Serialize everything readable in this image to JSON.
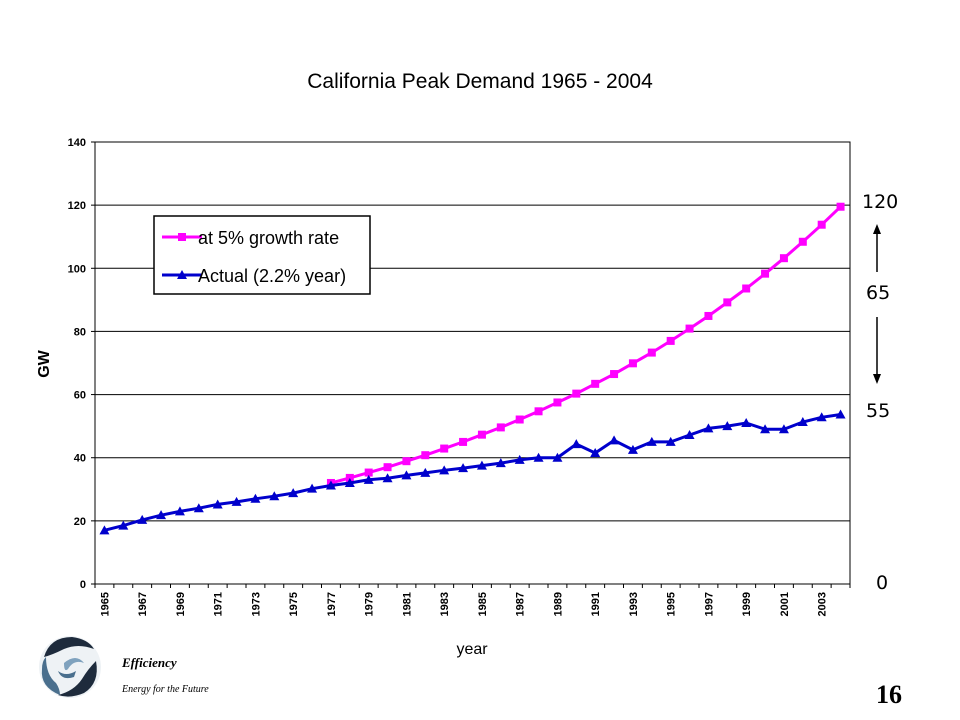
{
  "chart_data": {
    "type": "line",
    "title": "California Peak Demand 1965 - 2004",
    "xlabel": "year",
    "ylabel": "GW",
    "ylim": [
      0,
      140
    ],
    "yticks": [
      0,
      20,
      40,
      60,
      80,
      100,
      120,
      140
    ],
    "x": [
      1965,
      1966,
      1967,
      1968,
      1969,
      1970,
      1971,
      1972,
      1973,
      1974,
      1975,
      1976,
      1977,
      1978,
      1979,
      1980,
      1981,
      1982,
      1983,
      1984,
      1985,
      1986,
      1987,
      1988,
      1989,
      1990,
      1991,
      1992,
      1993,
      1994,
      1995,
      1996,
      1997,
      1998,
      1999,
      2000,
      2001,
      2002,
      2003,
      2004
    ],
    "xtick_labels": [
      "1965",
      "1967",
      "1969",
      "1971",
      "1973",
      "1975",
      "1977",
      "1979",
      "1981",
      "1983",
      "1985",
      "1987",
      "1989",
      "1991",
      "1993",
      "1995",
      "1997",
      "1999",
      "2001",
      "2003"
    ],
    "grid": true,
    "legend_position": "top-left",
    "series": [
      {
        "name": "at 5% growth rate",
        "color": "#ff00ff",
        "marker": "square",
        "x": [
          1977,
          1978,
          1979,
          1980,
          1981,
          1982,
          1983,
          1984,
          1985,
          1986,
          1987,
          1988,
          1989,
          1990,
          1991,
          1992,
          1993,
          1994,
          1995,
          1996,
          1997,
          1998,
          1999,
          2000,
          2001,
          2002,
          2003,
          2004
        ],
        "values": [
          32.0,
          33.6,
          35.3,
          37.0,
          38.9,
          40.8,
          42.9,
          45.0,
          47.3,
          49.6,
          52.1,
          54.7,
          57.5,
          60.3,
          63.4,
          66.5,
          69.9,
          73.3,
          77.0,
          80.9,
          84.9,
          89.2,
          93.6,
          98.3,
          103.2,
          108.4,
          113.8,
          119.5
        ]
      },
      {
        "name": "Actual  (2.2% year)",
        "color": "#0000cc",
        "marker": "triangle",
        "x": [
          1965,
          1966,
          1967,
          1968,
          1969,
          1970,
          1971,
          1972,
          1973,
          1974,
          1975,
          1976,
          1977,
          1978,
          1979,
          1980,
          1981,
          1982,
          1983,
          1984,
          1985,
          1986,
          1987,
          1988,
          1989,
          1990,
          1991,
          1992,
          1993,
          1994,
          1995,
          1996,
          1997,
          1998,
          1999,
          2000,
          2001,
          2002,
          2003,
          2004
        ],
        "values": [
          17,
          18.5,
          20.3,
          21.8,
          23,
          24,
          25.2,
          26,
          27,
          27.8,
          28.8,
          30.2,
          31.2,
          32,
          33,
          33.5,
          34.4,
          35.2,
          36,
          36.7,
          37.5,
          38.3,
          39.3,
          40,
          40,
          44.3,
          41.5,
          45.5,
          42.5,
          45,
          45,
          47.2,
          49.3,
          50,
          51,
          49,
          49,
          51.3,
          52.8,
          53.7
        ]
      }
    ]
  },
  "side_labels": {
    "top": "120",
    "middle": "65",
    "lower": "55",
    "bottom": "0"
  },
  "footer": {
    "brand_line1": "Efficiency",
    "brand_line2": "Energy for the Future",
    "page_number": "16"
  }
}
